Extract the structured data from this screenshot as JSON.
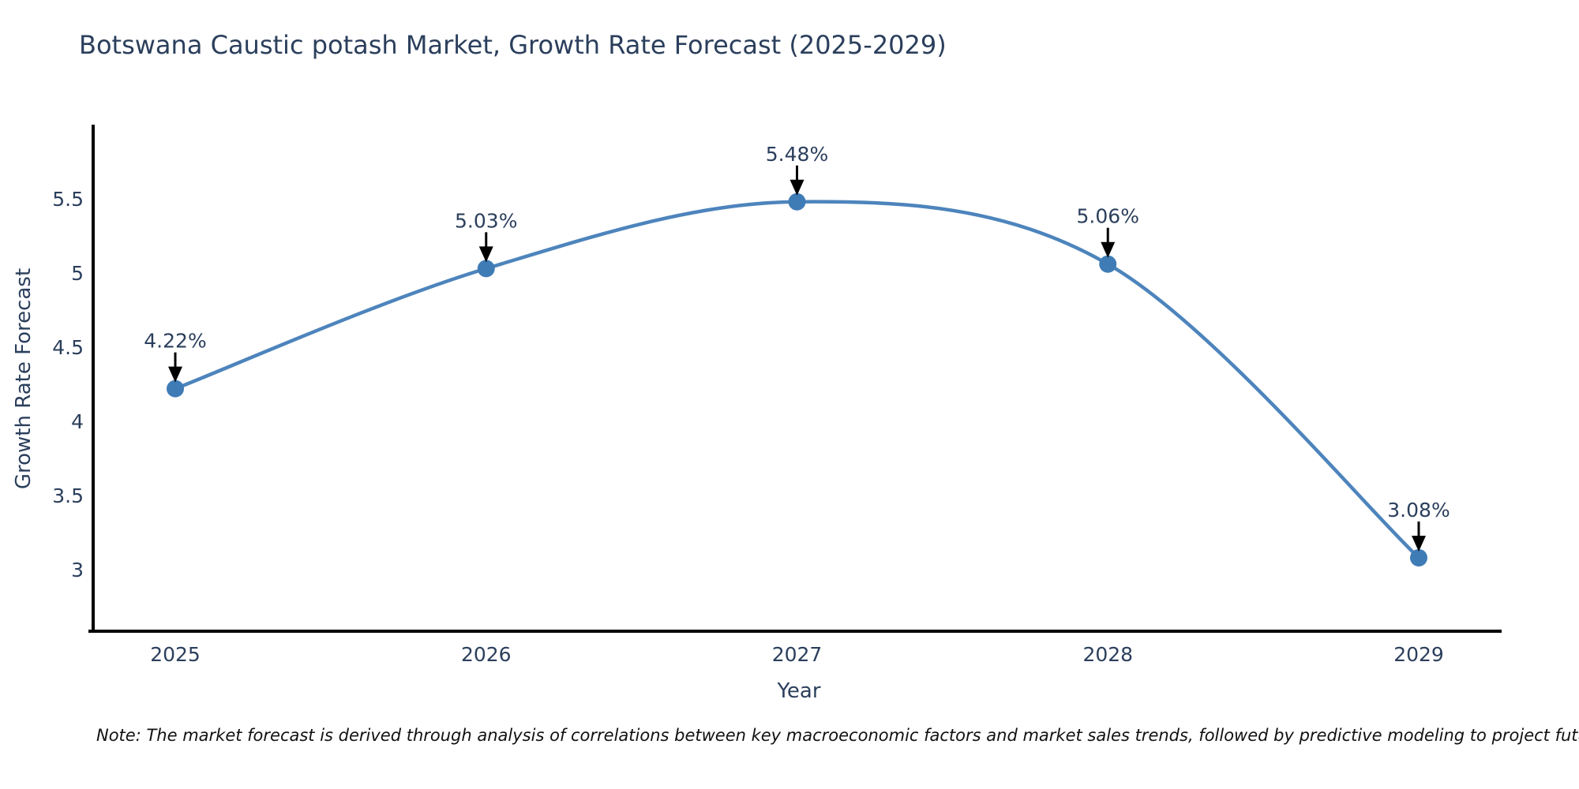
{
  "title": "Botswana Caustic potash Market, Growth Rate Forecast (2025-2029)",
  "note": "Note: The market forecast is derived through analysis of correlations between key macroeconomic factors and market sales trends, followed by predictive modeling to project future sales",
  "chart_data": {
    "type": "line",
    "title": "Botswana Caustic potash Market, Growth Rate Forecast (2025-2029)",
    "xlabel": "Year",
    "ylabel": "Growth Rate Forecast",
    "categories": [
      "2025",
      "2026",
      "2027",
      "2028",
      "2029"
    ],
    "x": [
      2025,
      2026,
      2027,
      2028,
      2029
    ],
    "values": [
      4.22,
      5.03,
      5.48,
      5.06,
      3.08
    ],
    "point_labels": [
      "4.22%",
      "5.03%",
      "5.48%",
      "5.06%",
      "3.08%"
    ],
    "yticks": [
      3,
      3.5,
      4,
      4.5,
      5,
      5.5
    ],
    "ylim": [
      2.58,
      6.0
    ],
    "grid": false,
    "legend": "none",
    "smooth": true,
    "line_color": "#4d84bc",
    "marker_color": "#3f7cb6",
    "axis_color": "#000000",
    "annotation_arrow_color": "#000000",
    "text_color": "#2b3f5c"
  }
}
